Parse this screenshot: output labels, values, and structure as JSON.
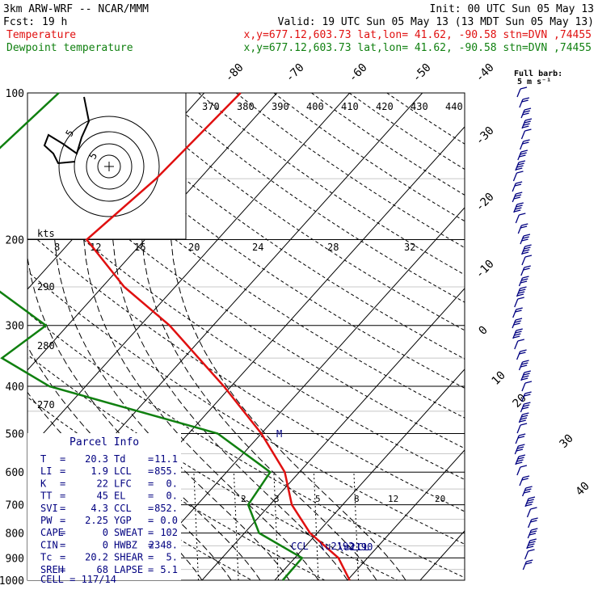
{
  "header": {
    "title": "3km ARW-WRF -- NCAR/MMM",
    "init": "Init: 00 UTC Sun 05 May 13",
    "fcst_label": "Fcst:",
    "fcst_value": "19 h",
    "valid": "Valid: 19 UTC Sun 05 May 13 (13 MDT Sun 05 May 13)",
    "temp_label": "Temperature",
    "dew_label": "Dewpoint temperature",
    "location": "x,y=677.12,603.73   lat,lon= 41.62, -90.58   stn=DVN ,74455"
  },
  "barb_legend": {
    "title": "Full barb:",
    "value": "5 m s⁻¹"
  },
  "hodograph": {
    "ring_label": "5",
    "ring_label2": "5",
    "units": "kts"
  },
  "parcel_info": {
    "title": "Parcel Info",
    "rows": [
      {
        "l1": "T",
        "v1": "20.3",
        "l2": "Td",
        "v2": "11.1"
      },
      {
        "l1": "LI",
        "v1": "1.9",
        "l2": "LCL",
        "v2": "855."
      },
      {
        "l1": "K",
        "v1": "22",
        "l2": "LFC",
        "v2": "0."
      },
      {
        "l1": "TT",
        "v1": "45",
        "l2": "EL",
        "v2": "0."
      },
      {
        "l1": "SVI",
        "v1": "4.3",
        "l2": "CCL",
        "v2": "852."
      },
      {
        "l1": "PW",
        "v1": "2.25",
        "l2": "YGP",
        "v2": "0.0"
      },
      {
        "l1": "CAPE",
        "v1": "0",
        "l2": "SWEAT",
        "v2": "102"
      },
      {
        "l1": "CIN",
        "v1": "0",
        "l2": "HWBZ",
        "v2": "2348."
      },
      {
        "l1": "Tc",
        "v1": "20.2",
        "l2": "SHEAR",
        "v2": "5."
      },
      {
        "l1": "SREH",
        "v1": "68",
        "l2": "LAPSE",
        "v2": "5.1"
      }
    ],
    "cell": "CELL = 117/14"
  },
  "annotations": {
    "ccl": "CCL",
    "lcl": "LCL"
  },
  "colors": {
    "temperature": "#e01010",
    "dewpoint": "#108010",
    "grid": "#000000",
    "barbs": "#000080"
  },
  "chart_data": {
    "type": "line",
    "chart_kind": "skew-T log-p sounding",
    "pressure_levels": [
      "100",
      "200",
      "300",
      "400",
      "500",
      "600",
      "700",
      "800",
      "900",
      "1000"
    ],
    "isotherm_labels": [
      "-80",
      "-70",
      "-60",
      "-50",
      "-40",
      "-30",
      "-20",
      "-10",
      "0",
      "10",
      "20",
      "30",
      "40"
    ],
    "theta_labels_top": [
      "370",
      "380",
      "390",
      "400",
      "410",
      "420",
      "430",
      "440"
    ],
    "theta_labels_left": [
      "290",
      "280",
      "270"
    ],
    "hodo_speed_labels": [
      "8",
      "12",
      "16",
      "20",
      "24",
      "28",
      "32"
    ],
    "mixing_ratio_labels": [
      "2",
      "3",
      "5",
      "8",
      "12",
      "20"
    ],
    "series": [
      {
        "name": "Temperature",
        "points": [
          [
            100,
            -55
          ],
          [
            150,
            -56
          ],
          [
            200,
            -58
          ],
          [
            250,
            -47
          ],
          [
            300,
            -36
          ],
          [
            400,
            -21
          ],
          [
            500,
            -10
          ],
          [
            600,
            -2
          ],
          [
            700,
            3
          ],
          [
            800,
            9
          ],
          [
            900,
            16
          ],
          [
            1000,
            20.3
          ]
        ]
      },
      {
        "name": "Dewpoint temperature",
        "points": [
          [
            100,
            -80
          ],
          [
            150,
            -82
          ],
          [
            200,
            -76
          ],
          [
            250,
            -65
          ],
          [
            300,
            -53
          ],
          [
            350,
            -55
          ],
          [
            400,
            -45
          ],
          [
            500,
            -16
          ],
          [
            600,
            -4
          ],
          [
            700,
            -3
          ],
          [
            800,
            2
          ],
          [
            900,
            11
          ],
          [
            1000,
            11.1
          ]
        ]
      }
    ]
  }
}
